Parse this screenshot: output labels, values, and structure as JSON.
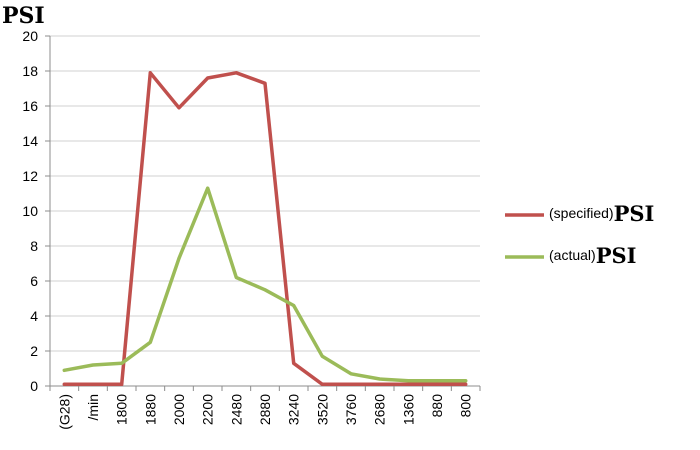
{
  "chart_data": {
    "type": "line",
    "y_title": "PSI",
    "ylim": [
      0,
      20
    ],
    "y_ticks": [
      "0",
      "2",
      "4",
      "6",
      "8",
      "10",
      "12",
      "14",
      "16",
      "18",
      "20"
    ],
    "grid": "horizontal",
    "legend_position": "right",
    "categories": [
      "(G28)",
      "/min",
      "1800",
      "1880",
      "2000",
      "2200",
      "2480",
      "2880",
      "3240",
      "3520",
      "3760",
      "2680",
      "1360",
      "880",
      "800"
    ],
    "series": [
      {
        "name": "(specified)PSI",
        "name_prefix": "(specified)",
        "name_suffix": "PSI",
        "color": "#c0504d",
        "values": [
          0.1,
          0.1,
          0.1,
          17.9,
          15.9,
          17.6,
          17.9,
          17.3,
          1.3,
          0.1,
          0.1,
          0.1,
          0.1,
          0.1,
          0.1
        ]
      },
      {
        "name": "(actual)PSI",
        "name_prefix": "(actual)",
        "name_suffix": "PSI",
        "color": "#9bbb59",
        "values": [
          0.9,
          1.2,
          1.3,
          2.5,
          7.3,
          11.3,
          6.2,
          5.5,
          4.6,
          1.7,
          0.7,
          0.4,
          0.3,
          0.3,
          0.3
        ]
      }
    ]
  }
}
